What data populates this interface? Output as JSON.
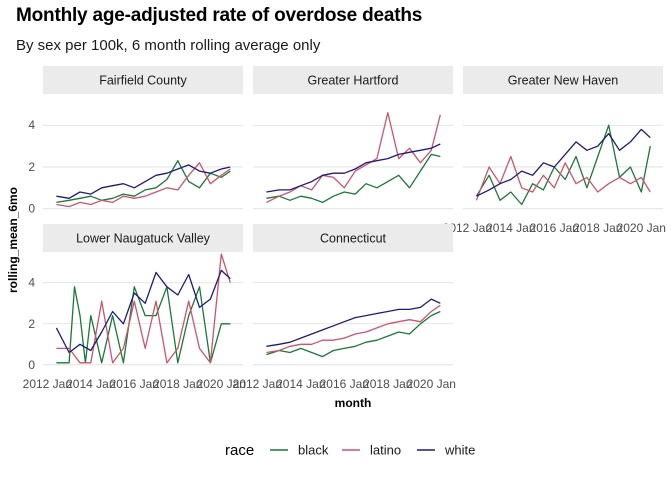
{
  "title": "Monthly age-adjusted rate of overdose deaths",
  "subtitle": "By sex per 100k, 6 month rolling average only",
  "chart_data": {
    "type": "line",
    "xlabel": "month",
    "ylabel": "rolling_mean_6mo",
    "ylim": [
      0,
      4.6
    ],
    "y_ticks": [
      0,
      2,
      4
    ],
    "x_range": [
      "2012-01",
      "2020-06"
    ],
    "x_tick_labels": [
      "2012 Jan",
      "2014 Jan",
      "2016 Jan",
      "2018 Jan",
      "2020 Jan"
    ],
    "grid": true,
    "legend": {
      "title": "race",
      "position": "bottom",
      "entries": [
        "black",
        "latino",
        "white"
      ]
    },
    "colors": {
      "black": "#1b7837",
      "latino": "#c9566d",
      "white": "#1f1a7a"
    },
    "facets": [
      {
        "name": "Fairfield County",
        "series": [
          {
            "name": "black",
            "x": [
              "2012-06",
              "2013-01",
              "2013-07",
              "2014-01",
              "2014-07",
              "2015-01",
              "2015-07",
              "2016-01",
              "2016-07",
              "2017-01",
              "2017-07",
              "2018-01",
              "2018-07",
              "2019-01",
              "2019-07",
              "2020-01",
              "2020-06"
            ],
            "y": [
              0.3,
              0.4,
              0.5,
              0.6,
              0.4,
              0.5,
              0.7,
              0.6,
              0.9,
              1.0,
              1.4,
              2.3,
              1.3,
              1.0,
              1.7,
              1.5,
              1.8
            ]
          },
          {
            "name": "latino",
            "x": [
              "2012-06",
              "2013-01",
              "2013-07",
              "2014-01",
              "2014-07",
              "2015-01",
              "2015-07",
              "2016-01",
              "2016-07",
              "2017-01",
              "2017-07",
              "2018-01",
              "2018-07",
              "2019-01",
              "2019-07",
              "2020-01",
              "2020-06"
            ],
            "y": [
              0.2,
              0.1,
              0.3,
              0.2,
              0.4,
              0.3,
              0.6,
              0.5,
              0.6,
              0.8,
              1.0,
              0.9,
              1.6,
              2.2,
              1.2,
              1.6,
              1.9
            ]
          },
          {
            "name": "white",
            "x": [
              "2012-06",
              "2013-01",
              "2013-07",
              "2014-01",
              "2014-07",
              "2015-01",
              "2015-07",
              "2016-01",
              "2016-07",
              "2017-01",
              "2017-07",
              "2018-01",
              "2018-07",
              "2019-01",
              "2019-07",
              "2020-01",
              "2020-06"
            ],
            "y": [
              0.6,
              0.5,
              0.8,
              0.7,
              1.0,
              1.1,
              1.2,
              1.0,
              1.3,
              1.6,
              1.7,
              1.9,
              2.1,
              1.8,
              1.7,
              1.9,
              2.0
            ]
          }
        ]
      },
      {
        "name": "Greater Hartford",
        "series": [
          {
            "name": "black",
            "x": [
              "2012-06",
              "2013-01",
              "2013-07",
              "2014-01",
              "2014-07",
              "2015-01",
              "2015-07",
              "2016-01",
              "2016-07",
              "2017-01",
              "2017-07",
              "2018-01",
              "2018-07",
              "2019-01",
              "2019-07",
              "2020-01",
              "2020-06"
            ],
            "y": [
              0.5,
              0.6,
              0.4,
              0.6,
              0.5,
              0.3,
              0.6,
              0.8,
              0.7,
              1.2,
              1.0,
              1.3,
              1.6,
              1.0,
              1.8,
              2.6,
              2.5
            ]
          },
          {
            "name": "latino",
            "x": [
              "2012-06",
              "2013-01",
              "2013-07",
              "2014-01",
              "2014-07",
              "2015-01",
              "2015-07",
              "2016-01",
              "2016-07",
              "2017-01",
              "2017-07",
              "2018-01",
              "2018-07",
              "2019-01",
              "2019-07",
              "2020-01",
              "2020-06"
            ],
            "y": [
              0.3,
              0.6,
              0.8,
              1.1,
              0.9,
              1.6,
              1.5,
              1.0,
              1.8,
              2.1,
              2.4,
              4.6,
              2.4,
              2.9,
              2.2,
              2.8,
              4.5
            ]
          },
          {
            "name": "white",
            "x": [
              "2012-06",
              "2013-01",
              "2013-07",
              "2014-01",
              "2014-07",
              "2015-01",
              "2015-07",
              "2016-01",
              "2016-07",
              "2017-01",
              "2017-07",
              "2018-01",
              "2018-07",
              "2019-01",
              "2019-07",
              "2020-01",
              "2020-06"
            ],
            "y": [
              0.8,
              0.9,
              0.9,
              1.1,
              1.3,
              1.6,
              1.7,
              1.7,
              1.9,
              2.2,
              2.3,
              2.4,
              2.6,
              2.7,
              2.8,
              2.9,
              3.1
            ]
          }
        ]
      },
      {
        "name": "Greater New Haven",
        "series": [
          {
            "name": "black",
            "x": [
              "2012-06",
              "2013-01",
              "2013-07",
              "2014-01",
              "2014-07",
              "2015-01",
              "2015-07",
              "2016-01",
              "2016-07",
              "2017-01",
              "2017-07",
              "2018-01",
              "2018-07",
              "2019-01",
              "2019-07",
              "2020-01",
              "2020-06"
            ],
            "y": [
              0.6,
              1.6,
              0.4,
              0.8,
              0.2,
              1.2,
              0.9,
              2.0,
              1.4,
              2.5,
              1.0,
              2.5,
              4.0,
              1.5,
              2.0,
              0.8,
              3.0
            ]
          },
          {
            "name": "latino",
            "x": [
              "2012-06",
              "2013-01",
              "2013-07",
              "2014-01",
              "2014-07",
              "2015-01",
              "2015-07",
              "2016-01",
              "2016-07",
              "2017-01",
              "2017-07",
              "2018-01",
              "2018-07",
              "2019-01",
              "2019-07",
              "2020-01",
              "2020-06"
            ],
            "y": [
              0.4,
              2.0,
              1.2,
              2.5,
              1.0,
              0.8,
              1.6,
              1.0,
              2.2,
              1.2,
              1.5,
              0.8,
              1.2,
              1.5,
              1.2,
              1.5,
              0.8
            ]
          },
          {
            "name": "white",
            "x": [
              "2012-06",
              "2013-01",
              "2013-07",
              "2014-01",
              "2014-07",
              "2015-01",
              "2015-07",
              "2016-01",
              "2016-07",
              "2017-01",
              "2017-07",
              "2018-01",
              "2018-07",
              "2019-01",
              "2019-07",
              "2020-01",
              "2020-06"
            ],
            "y": [
              0.6,
              0.9,
              1.2,
              1.4,
              1.8,
              1.6,
              2.2,
              2.0,
              2.6,
              3.2,
              2.8,
              3.0,
              3.6,
              2.8,
              3.2,
              3.8,
              3.4
            ]
          }
        ]
      },
      {
        "name": "Lower Naugatuck Valley",
        "series": [
          {
            "name": "black",
            "x": [
              "2012-06",
              "2013-01",
              "2013-04",
              "2013-07",
              "2013-10",
              "2014-01",
              "2014-07",
              "2015-01",
              "2015-07",
              "2016-01",
              "2016-07",
              "2017-01",
              "2017-07",
              "2018-01",
              "2018-07",
              "2019-01",
              "2019-07",
              "2020-01",
              "2020-06"
            ],
            "y": [
              0.1,
              0.1,
              3.8,
              2.4,
              0.1,
              2.4,
              0.1,
              2.4,
              0.1,
              3.8,
              2.4,
              2.4,
              3.8,
              0.1,
              2.4,
              3.8,
              0.1,
              2.0,
              2.0
            ]
          },
          {
            "name": "latino",
            "x": [
              "2012-06",
              "2013-01",
              "2013-07",
              "2014-01",
              "2014-07",
              "2015-01",
              "2015-07",
              "2016-01",
              "2016-07",
              "2017-01",
              "2017-07",
              "2018-01",
              "2018-07",
              "2019-01",
              "2019-07",
              "2020-01",
              "2020-06"
            ],
            "y": [
              0.8,
              0.8,
              0.1,
              0.1,
              3.1,
              0.1,
              0.8,
              3.1,
              0.8,
              3.1,
              0.1,
              0.8,
              3.1,
              0.8,
              0.1,
              5.5,
              4.0
            ]
          },
          {
            "name": "white",
            "x": [
              "2012-06",
              "2013-01",
              "2013-07",
              "2014-01",
              "2014-07",
              "2015-01",
              "2015-07",
              "2016-01",
              "2016-07",
              "2017-01",
              "2017-07",
              "2018-01",
              "2018-07",
              "2019-01",
              "2019-07",
              "2020-01",
              "2020-06"
            ],
            "y": [
              1.8,
              0.6,
              1.0,
              0.7,
              1.6,
              2.6,
              2.0,
              3.5,
              3.0,
              4.5,
              3.8,
              3.4,
              4.4,
              2.8,
              3.2,
              4.6,
              4.2
            ]
          }
        ]
      },
      {
        "name": "Connecticut",
        "series": [
          {
            "name": "black",
            "x": [
              "2012-06",
              "2013-01",
              "2013-07",
              "2014-01",
              "2014-07",
              "2015-01",
              "2015-07",
              "2016-01",
              "2016-07",
              "2017-01",
              "2017-07",
              "2018-01",
              "2018-07",
              "2019-01",
              "2019-07",
              "2020-01",
              "2020-06"
            ],
            "y": [
              0.5,
              0.7,
              0.6,
              0.8,
              0.6,
              0.4,
              0.7,
              0.8,
              0.9,
              1.1,
              1.2,
              1.4,
              1.6,
              1.5,
              2.0,
              2.4,
              2.6
            ]
          },
          {
            "name": "latino",
            "x": [
              "2012-06",
              "2013-01",
              "2013-07",
              "2014-01",
              "2014-07",
              "2015-01",
              "2015-07",
              "2016-01",
              "2016-07",
              "2017-01",
              "2017-07",
              "2018-01",
              "2018-07",
              "2019-01",
              "2019-07",
              "2020-01",
              "2020-06"
            ],
            "y": [
              0.6,
              0.7,
              0.9,
              1.0,
              1.0,
              1.2,
              1.2,
              1.3,
              1.5,
              1.6,
              1.8,
              2.0,
              2.1,
              2.2,
              2.1,
              2.6,
              2.9
            ]
          },
          {
            "name": "white",
            "x": [
              "2012-06",
              "2013-01",
              "2013-07",
              "2014-01",
              "2014-07",
              "2015-01",
              "2015-07",
              "2016-01",
              "2016-07",
              "2017-01",
              "2017-07",
              "2018-01",
              "2018-07",
              "2019-01",
              "2019-07",
              "2020-01",
              "2020-06"
            ],
            "y": [
              0.9,
              1.0,
              1.1,
              1.3,
              1.5,
              1.7,
              1.9,
              2.1,
              2.3,
              2.4,
              2.5,
              2.6,
              2.7,
              2.7,
              2.8,
              3.2,
              3.0
            ]
          }
        ]
      }
    ]
  }
}
